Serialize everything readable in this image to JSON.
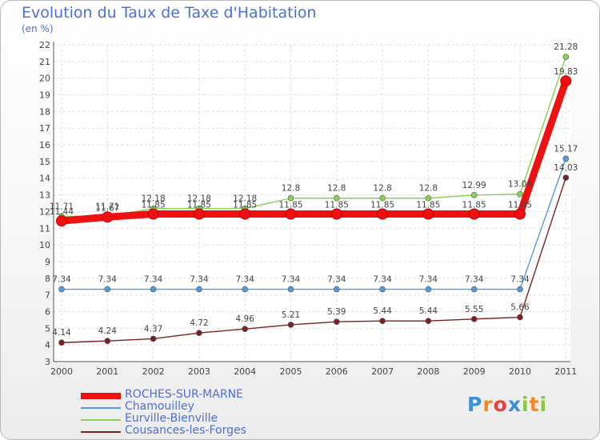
{
  "header": {
    "title": "Evolution du Taux de Taxe d'Habitation",
    "unit": "(en %)"
  },
  "chart_data": {
    "type": "line",
    "title": "Evolution du Taux de Taxe d'Habitation",
    "ylabel": "(en %)",
    "xlabel": "",
    "x": [
      "2000",
      "2001",
      "2002",
      "2003",
      "2004",
      "2005",
      "2006",
      "2007",
      "2008",
      "2009",
      "2010",
      "2011"
    ],
    "ylim": [
      3,
      22
    ],
    "yticks": [
      3,
      4,
      5,
      6,
      7,
      8,
      9,
      10,
      11,
      12,
      13,
      14,
      15,
      16,
      17,
      18,
      19,
      20,
      21,
      22
    ],
    "grid": true,
    "series": [
      {
        "name": "ROCHES-SUR-MARNE",
        "color": "#ee1111",
        "values": [
          11.44,
          11.67,
          11.85,
          11.85,
          11.85,
          11.85,
          11.85,
          11.85,
          11.85,
          11.85,
          11.85,
          19.83
        ],
        "labels": [
          "11.44",
          "11.67",
          "11.85",
          "11.85",
          "11.85",
          "11.85",
          "11.85",
          "11.85",
          "11.85",
          "11.85",
          "11.85",
          "19.83"
        ]
      },
      {
        "name": "Chamouilley",
        "color": "#5599dd",
        "values": [
          7.34,
          7.34,
          7.34,
          7.34,
          7.34,
          7.34,
          7.34,
          7.34,
          7.34,
          7.34,
          7.34,
          15.17
        ],
        "labels": [
          "7.34",
          "7.34",
          "7.34",
          "7.34",
          "7.34",
          "7.34",
          "7.34",
          "7.34",
          "7.34",
          "7.34",
          "7.34",
          "15.17"
        ]
      },
      {
        "name": "Eurville-Bienville",
        "color": "#88d155",
        "values": [
          11.71,
          11.71,
          12.18,
          12.18,
          12.18,
          12.8,
          12.8,
          12.8,
          12.8,
          12.99,
          13.04,
          21.28
        ],
        "labels": [
          "11.71",
          "11.71",
          "12.18",
          "12.18",
          "12.18",
          "12.8",
          "12.8",
          "12.8",
          "12.8",
          "12.99",
          "13.04",
          "21.28"
        ]
      },
      {
        "name": "Cousances-les-Forges",
        "color": "#7a2222",
        "values": [
          4.14,
          4.24,
          4.37,
          4.72,
          4.96,
          5.21,
          5.39,
          5.44,
          5.44,
          5.55,
          5.66,
          14.03
        ],
        "labels": [
          "4.14",
          "4.24",
          "4.37",
          "4.72",
          "4.96",
          "5.21",
          "5.39",
          "5.44",
          "5.44",
          "5.55",
          "5.66",
          "14.03"
        ]
      }
    ]
  },
  "logo": {
    "text": "Proxiti",
    "letters": [
      "P",
      "r",
      "o",
      "x",
      "i",
      "t",
      "i"
    ],
    "colors": [
      "#3d8fd8",
      "#f08a1d",
      "#e94040",
      "#3d8fd8",
      "#8cc63f",
      "#f08a1d",
      "#8cc63f"
    ]
  }
}
